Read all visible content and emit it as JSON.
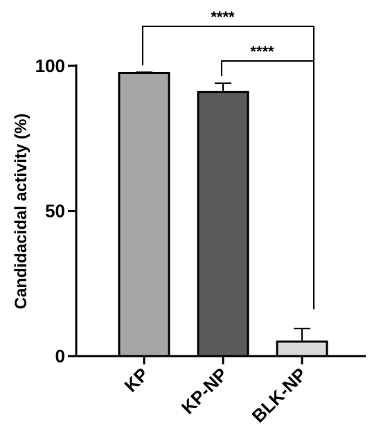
{
  "chart_data": {
    "type": "bar",
    "title": "",
    "xlabel": "",
    "ylabel": "Candidacidal activity (%)",
    "ylim": [
      0,
      100
    ],
    "yticks": [
      0,
      50,
      100
    ],
    "categories": [
      "KP",
      "KP-NP",
      "BLK-NP"
    ],
    "series": [
      {
        "values": [
          97.5,
          91,
          5
        ],
        "errors": [
          0.3,
          3,
          4.5
        ]
      }
    ],
    "bar_colors": [
      "#a6a6a8",
      "#5b5b5b",
      "#d9d9d9"
    ],
    "significance": [
      {
        "from": "KP",
        "to": "BLK-NP",
        "label": "****"
      },
      {
        "from": "KP-NP",
        "to": "BLK-NP",
        "label": "****"
      }
    ],
    "grid": false,
    "legend": "none"
  }
}
